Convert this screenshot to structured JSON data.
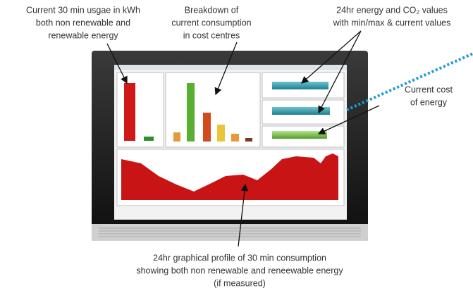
{
  "annotations": [
    {
      "lines": [
        "Current 30 min usgae in kWh",
        "both non renewable and",
        "renewable energy"
      ]
    },
    {
      "lines": [
        "Breakdown of",
        "current consumption",
        "in cost centres"
      ]
    },
    {
      "lines": [
        "24hr energy and CO₂ values",
        "with min/max & current values"
      ]
    },
    {
      "lines": [
        "Current cost",
        "of energy"
      ]
    },
    {
      "lines": [
        "24hr graphical profile of 30 min consumption",
        "showing both non renewable and reneewable energy",
        "(if measured)"
      ]
    }
  ]
}
